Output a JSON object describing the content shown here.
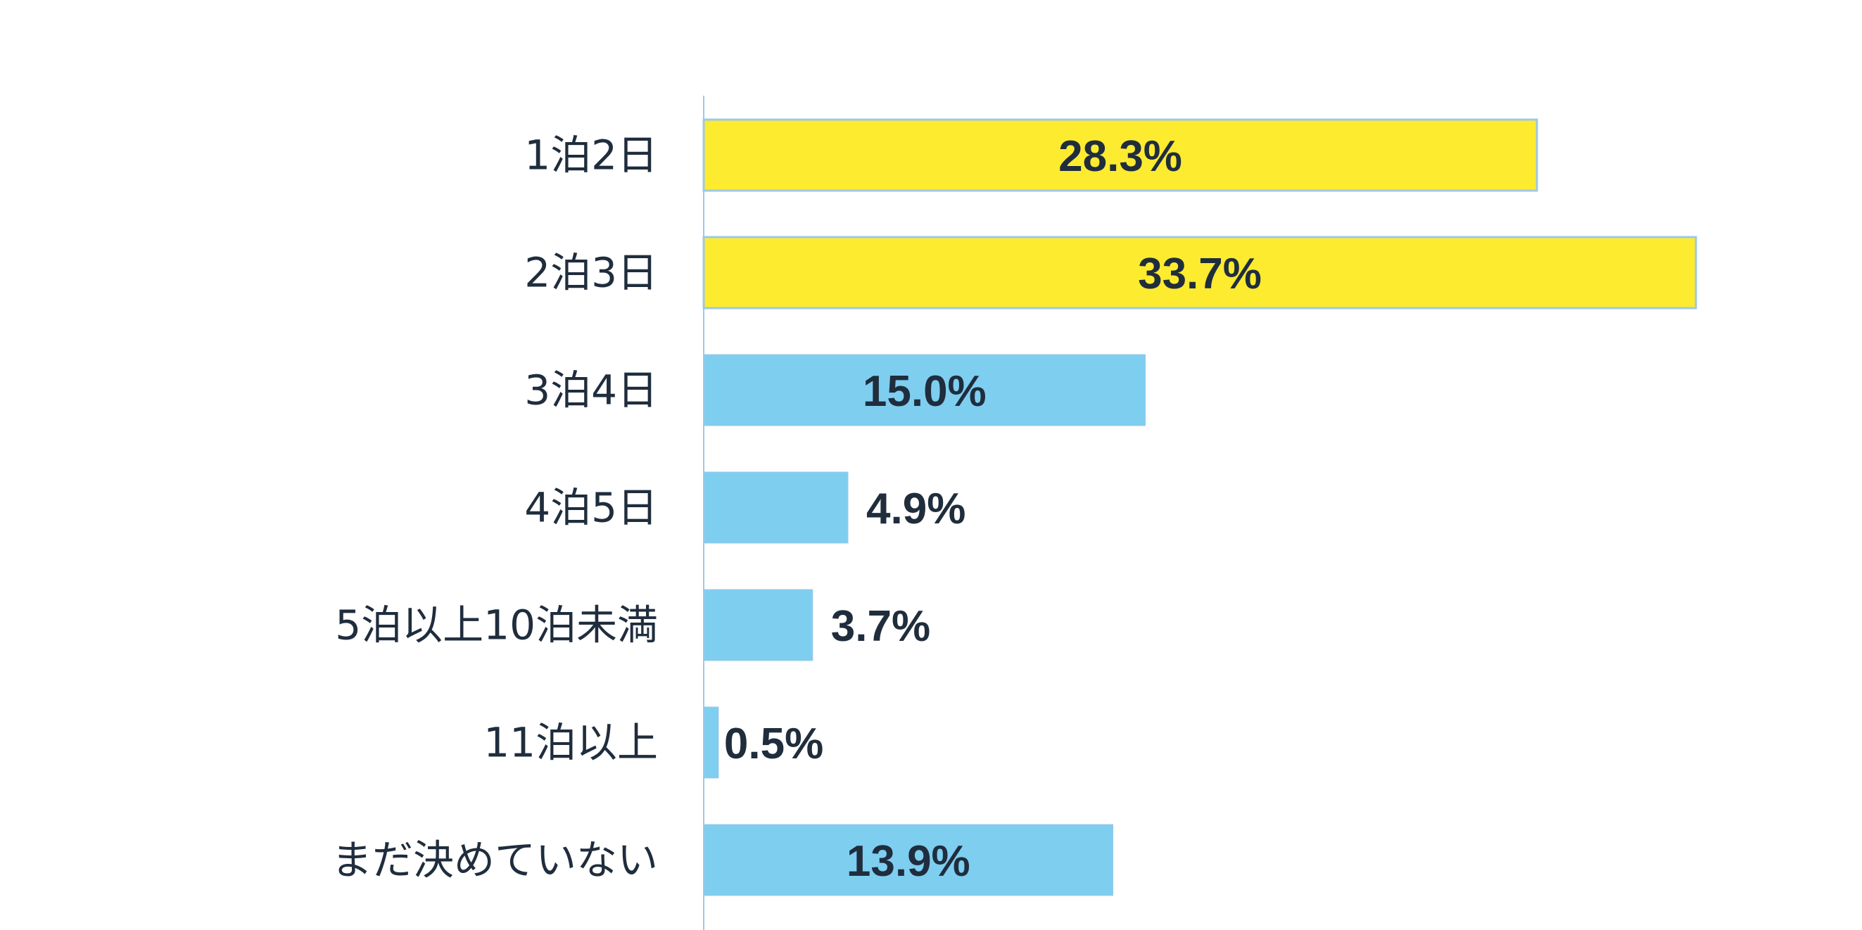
{
  "chart_data": {
    "type": "bar",
    "orientation": "horizontal",
    "title": "",
    "xlabel": "",
    "ylabel": "",
    "unit": "%",
    "categories": [
      "1泊2日",
      "2泊3日",
      "3泊4日",
      "4泊5日",
      "5泊以上10泊未満",
      "11泊以上",
      "まだ決めていない"
    ],
    "values": [
      28.3,
      33.7,
      15.0,
      4.9,
      3.7,
      0.5,
      13.9
    ],
    "value_labels": [
      "28.3%",
      "33.7%",
      "15.0%",
      "4.9%",
      "3.7%",
      "0.5%",
      "13.9%"
    ],
    "highlighted": [
      true,
      true,
      false,
      false,
      false,
      false,
      false
    ],
    "xlim": [
      0,
      33.7
    ],
    "grid": false,
    "legend": "none"
  },
  "colors": {
    "highlight": "#fdeb2f",
    "default": "#7ecef0",
    "bar_border": "#9fc8e6",
    "axis": "#9fc8e6",
    "text": "#1f2d3d"
  }
}
